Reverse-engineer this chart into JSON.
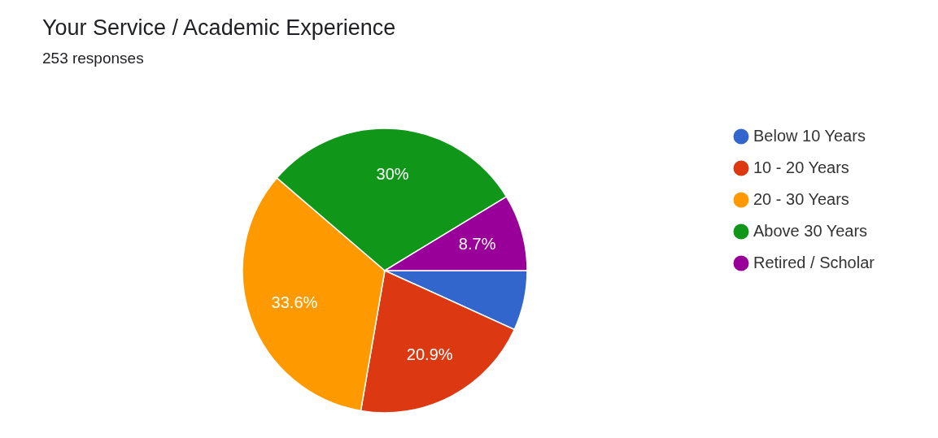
{
  "chart_data": {
    "type": "pie",
    "title": "Your Service / Academic Experience",
    "subtitle": "253 responses",
    "categories": [
      "Below 10 Years",
      "10 - 20 Years",
      "20 - 30 Years",
      "Above 30 Years",
      "Retired / Scholar"
    ],
    "values": [
      6.8,
      20.9,
      33.6,
      30,
      8.7
    ],
    "value_labels": [
      null,
      "20.9%",
      "33.6%",
      "30%",
      "8.7%"
    ],
    "colors": [
      "#3366cc",
      "#dc3912",
      "#ff9900",
      "#109618",
      "#990099"
    ],
    "legend": "right"
  }
}
